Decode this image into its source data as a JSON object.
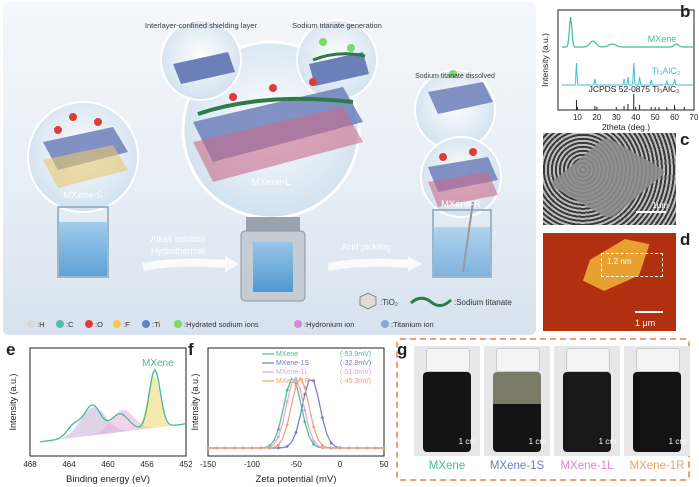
{
  "panel_labels": {
    "a": "a",
    "b": "b",
    "c": "c",
    "d": "d",
    "e": "e",
    "f": "f",
    "g": "g"
  },
  "panel_a": {
    "bubble_labels": {
      "confined": "Interlayer-confined shielding layer",
      "generation": "Sodium titanate generation",
      "dissolved": "Sodium titanate dissolved"
    },
    "samples": {
      "s": "MXene-S",
      "l": "MXene-L",
      "r": "MXene-R"
    },
    "arrow1": [
      "Alkali solution",
      "Hydrothermal"
    ],
    "arrow2": "Acid pickling",
    "legend_top": {
      "tio2": ":TiO₂",
      "sodium_titanate": ":Sodium titanate"
    },
    "legend_bottom": {
      "h": ":H",
      "c": ":C",
      "o": ":O",
      "f": ":F",
      "ti": ":Ti",
      "hydrated_sodium": ":Hydrated sodium ions",
      "hydronium": ":Hydronium ion",
      "titanium_ion": ":Titanium ion"
    },
    "colors": {
      "h": "#d8d8d8",
      "c": "#4fbfa8",
      "o": "#e23a3a",
      "f": "#f2c94c",
      "ti": "#5a86c8",
      "hydrated": "#7cd96a",
      "hydronium": "#d28ad8",
      "titanium_ion": "#8aa8d8"
    }
  },
  "panel_b": {
    "chart_data": {
      "type": "line",
      "xlabel": "2theta (deg.)",
      "ylabel": "Intensity (a.u.)",
      "xlim": [
        0,
        70
      ],
      "xticks": [
        10,
        20,
        30,
        40,
        50,
        60,
        70
      ],
      "series": [
        {
          "name": "MXene",
          "color": "#3fbf8f"
        },
        {
          "name": "Ti₃AlC₂",
          "color": "#3fbfd8"
        },
        {
          "name": "JCPDS 52-0875 Ti₃AlC₂",
          "color": "#222222"
        }
      ]
    }
  },
  "panel_c": {
    "scale": "1μm"
  },
  "panel_d": {
    "height": "1.2 nm",
    "scale": "1 μm"
  },
  "panel_e": {
    "chart_data": {
      "type": "line",
      "xlabel": "Binding energy (eV)",
      "ylabel": "Intensity (a.u.)",
      "xlim": [
        468,
        452
      ],
      "xticks": [
        468,
        464,
        460,
        456,
        452
      ],
      "series": [
        {
          "name": "MXene",
          "color": "#3fbf8f"
        }
      ]
    }
  },
  "panel_f": {
    "chart_data": {
      "type": "line",
      "xlabel": "Zeta potential (mV)",
      "ylabel": "Intensity (a.u.)",
      "xlim": [
        -150,
        50
      ],
      "xticks": [
        -150,
        -100,
        -50,
        0,
        50
      ],
      "series": [
        {
          "name": "MXene",
          "value": "(-53.9mV)",
          "peak": -53.9,
          "color": "#3fbf8f"
        },
        {
          "name": "MXene-1S",
          "value": "(-32.8mV)",
          "peak": -32.8,
          "color": "#6a7cc8"
        },
        {
          "name": "MXene-1L",
          "value": "(-51.0mV)",
          "peak": -51.0,
          "color": "#e8a0d8"
        },
        {
          "name": "MXene-1R",
          "value": "(-45.3mV)",
          "peak": -45.3,
          "color": "#f0a070"
        }
      ]
    }
  },
  "panel_g": {
    "vials": [
      {
        "label": "MXene",
        "color": "#3fbf8f",
        "scale": "1 cm"
      },
      {
        "label": "MXene-1S",
        "color": "#6a7cc8",
        "scale": "1 cm"
      },
      {
        "label": "MXene-1L",
        "color": "#e880d0",
        "scale": "1 cm"
      },
      {
        "label": "MXene-1R",
        "color": "#f0a070",
        "scale": "1 cm"
      }
    ]
  }
}
